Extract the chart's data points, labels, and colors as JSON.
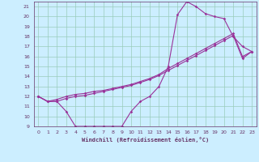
{
  "xlabel": "Windchill (Refroidissement éolien,°C)",
  "bg_color": "#cceeff",
  "line_color": "#993399",
  "grid_color": "#99ccbb",
  "axis_color": "#663366",
  "xlim": [
    -0.5,
    23.5
  ],
  "ylim": [
    9,
    21.5
  ],
  "xticks": [
    0,
    1,
    2,
    3,
    4,
    5,
    6,
    7,
    8,
    9,
    10,
    11,
    12,
    13,
    14,
    15,
    16,
    17,
    18,
    19,
    20,
    21,
    22,
    23
  ],
  "yticks": [
    9,
    10,
    11,
    12,
    13,
    14,
    15,
    16,
    17,
    18,
    19,
    20,
    21
  ],
  "line1_x": [
    0,
    1,
    2,
    3,
    4,
    5,
    6,
    7,
    8,
    9,
    10,
    11,
    12,
    13,
    14,
    15,
    16,
    17,
    18,
    19,
    20,
    21,
    22,
    23
  ],
  "line1_y": [
    12,
    11.5,
    11.5,
    10.5,
    9.0,
    9.0,
    9.0,
    9.0,
    9.0,
    9.0,
    10.5,
    11.5,
    12.0,
    13.0,
    15.0,
    20.2,
    21.5,
    21.0,
    20.3,
    20.0,
    19.8,
    18.0,
    17.0,
    16.5
  ],
  "line2_x": [
    0,
    1,
    2,
    3,
    4,
    5,
    6,
    7,
    8,
    9,
    10,
    11,
    12,
    13,
    14,
    15,
    16,
    17,
    18,
    19,
    20,
    21,
    22,
    23
  ],
  "line2_y": [
    12,
    11.5,
    11.7,
    12.0,
    12.2,
    12.3,
    12.5,
    12.6,
    12.8,
    13.0,
    13.2,
    13.5,
    13.8,
    14.2,
    14.8,
    15.3,
    15.8,
    16.3,
    16.8,
    17.3,
    17.8,
    18.3,
    16.0,
    16.5
  ],
  "line3_x": [
    0,
    1,
    2,
    3,
    4,
    5,
    6,
    7,
    8,
    9,
    10,
    11,
    12,
    13,
    14,
    15,
    16,
    17,
    18,
    19,
    20,
    21,
    22,
    23
  ],
  "line3_y": [
    12,
    11.5,
    11.5,
    11.8,
    12.0,
    12.1,
    12.3,
    12.5,
    12.7,
    12.9,
    13.1,
    13.4,
    13.7,
    14.1,
    14.6,
    15.1,
    15.6,
    16.1,
    16.6,
    17.1,
    17.6,
    18.1,
    15.8,
    16.5
  ],
  "marker": "D",
  "markersize": 1.8,
  "linewidth": 0.8
}
